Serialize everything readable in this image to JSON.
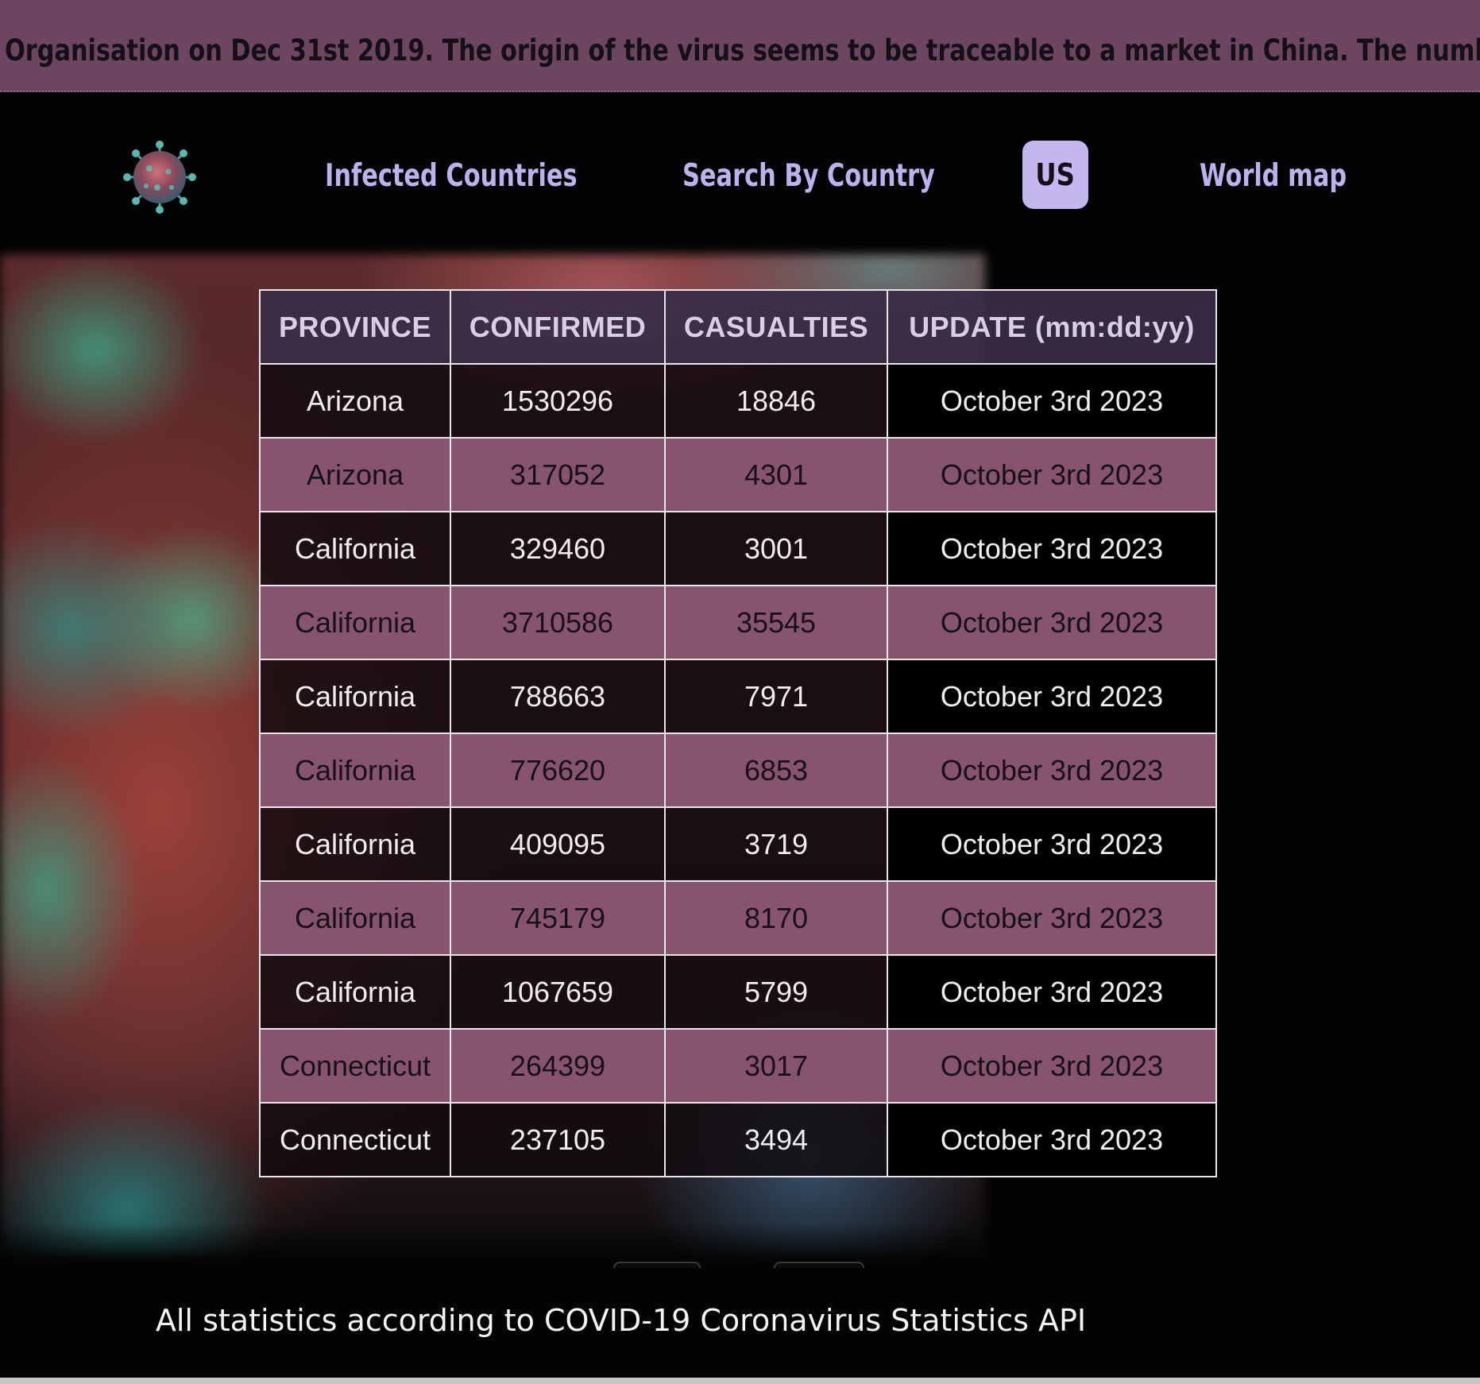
{
  "banner": {
    "text": "Organisation on Dec 31st 2019. The origin of the virus seems to be traceable to a market in China. The number of victi"
  },
  "nav": {
    "logo_icon": "coronavirus-icon",
    "links": [
      {
        "label": "Infected Countries"
      },
      {
        "label": "Search By Country"
      },
      {
        "label": "US",
        "active": true
      },
      {
        "label": "World map"
      }
    ]
  },
  "table": {
    "headers": [
      "PROVINCE",
      "CONFIRMED",
      "CASUALTIES",
      "UPDATE (mm:dd:yy)"
    ],
    "rows": [
      [
        "Arizona",
        "1530296",
        "18846",
        "October 3rd 2023"
      ],
      [
        "Arizona",
        "317052",
        "4301",
        "October 3rd 2023"
      ],
      [
        "California",
        "329460",
        "3001",
        "October 3rd 2023"
      ],
      [
        "California",
        "3710586",
        "35545",
        "October 3rd 2023"
      ],
      [
        "California",
        "788663",
        "7971",
        "October 3rd 2023"
      ],
      [
        "California",
        "776620",
        "6853",
        "October 3rd 2023"
      ],
      [
        "California",
        "409095",
        "3719",
        "October 3rd 2023"
      ],
      [
        "California",
        "745179",
        "8170",
        "October 3rd 2023"
      ],
      [
        "California",
        "1067659",
        "5799",
        "October 3rd 2023"
      ],
      [
        "Connecticut",
        "264399",
        "3017",
        "October 3rd 2023"
      ],
      [
        "Connecticut",
        "237105",
        "3494",
        "October 3rd 2023"
      ]
    ]
  },
  "footer": {
    "text": "All statistics according to COVID-19 Coronavirus Statistics API"
  },
  "colors": {
    "banner_bg": "#6c4560",
    "nav_link": "#bdb2ee",
    "active_tab_bg": "#c4b7ef",
    "row_alt_bg": "#875470"
  }
}
